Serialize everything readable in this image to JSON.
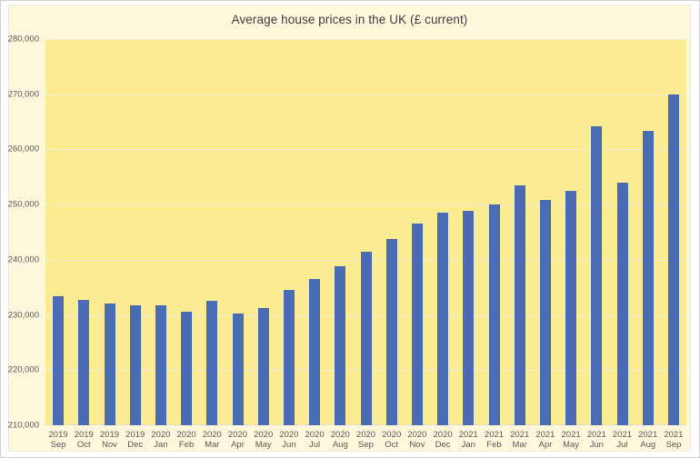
{
  "title": "Average house prices in the UK (£ current)",
  "colors": {
    "bar": "#4a6cb4",
    "plot_background": "#fbec93",
    "panel_background": "#fef7dc",
    "gridline": "#f3efd4",
    "axis_line": "#e0dbc2",
    "title_text": "#3f3f3f",
    "tick_text": "#595959",
    "outer_background": "#ffffff"
  },
  "chart_data": {
    "type": "bar",
    "title": "Average house prices in the UK (£ current)",
    "xlabel": "",
    "ylabel": "",
    "ylim": [
      210000,
      280000
    ],
    "ytick_step": 10000,
    "grid": true,
    "legend": "none",
    "yticks": [
      {
        "value": 280000,
        "label": "280,000"
      },
      {
        "value": 270000,
        "label": "270,000"
      },
      {
        "value": 260000,
        "label": "260,000"
      },
      {
        "value": 250000,
        "label": "250,000"
      },
      {
        "value": 240000,
        "label": "240,000"
      },
      {
        "value": 230000,
        "label": "230,000"
      },
      {
        "value": 220000,
        "label": "220,000"
      },
      {
        "value": 210000,
        "label": "210,000"
      }
    ],
    "categories": [
      {
        "year": "2019",
        "month": "Sep"
      },
      {
        "year": "2019",
        "month": "Oct"
      },
      {
        "year": "2019",
        "month": "Nov"
      },
      {
        "year": "2019",
        "month": "Dec"
      },
      {
        "year": "2020",
        "month": "Jan"
      },
      {
        "year": "2020",
        "month": "Feb"
      },
      {
        "year": "2020",
        "month": "Mar"
      },
      {
        "year": "2020",
        "month": "Apr"
      },
      {
        "year": "2020",
        "month": "May"
      },
      {
        "year": "2020",
        "month": "Jun"
      },
      {
        "year": "2020",
        "month": "Jul"
      },
      {
        "year": "2020",
        "month": "Aug"
      },
      {
        "year": "2020",
        "month": "Sep"
      },
      {
        "year": "2020",
        "month": "Oct"
      },
      {
        "year": "2020",
        "month": "Nov"
      },
      {
        "year": "2020",
        "month": "Dec"
      },
      {
        "year": "2021",
        "month": "Jan"
      },
      {
        "year": "2021",
        "month": "Feb"
      },
      {
        "year": "2021",
        "month": "Mar"
      },
      {
        "year": "2021",
        "month": "Apr"
      },
      {
        "year": "2021",
        "month": "May"
      },
      {
        "year": "2021",
        "month": "Jun"
      },
      {
        "year": "2021",
        "month": "Jul"
      },
      {
        "year": "2021",
        "month": "Aug"
      },
      {
        "year": "2021",
        "month": "Sep"
      }
    ],
    "values": [
      233400,
      232800,
      232100,
      231700,
      231800,
      230600,
      232500,
      230300,
      231300,
      234600,
      236600,
      238900,
      241500,
      243800,
      246500,
      248500,
      248900,
      250000,
      253500,
      250800,
      252500,
      264200,
      254000,
      263300,
      270000
    ]
  }
}
